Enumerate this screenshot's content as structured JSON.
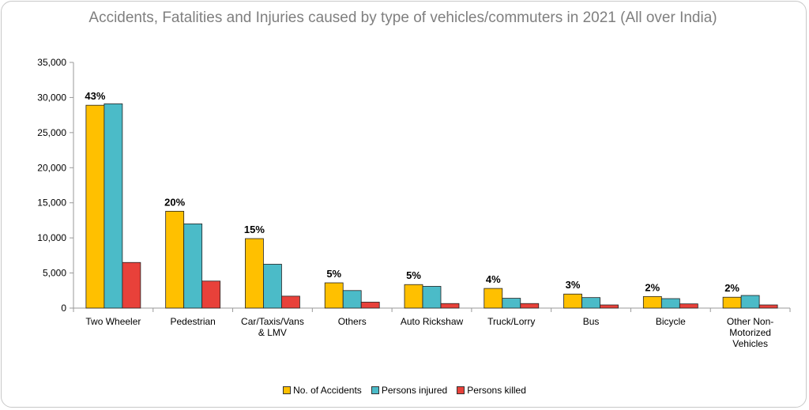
{
  "chart_data": {
    "type": "bar",
    "title": "Accidents, Fatalities and Injuries caused by type of vehicles/commuters in 2021 (All over India)",
    "categories": [
      [
        "Two Wheeler"
      ],
      [
        "Pedestrian"
      ],
      [
        "Car/Taxis/Vans",
        "& LMV"
      ],
      [
        "Others"
      ],
      [
        "Auto Rickshaw"
      ],
      [
        "Truck/Lorry"
      ],
      [
        "Bus"
      ],
      [
        "Bicycle"
      ],
      [
        "Other Non-",
        "Motorized",
        "Vehicles"
      ]
    ],
    "series": [
      {
        "name": "No. of Accidents",
        "color": "#FFC000",
        "values": [
          28900,
          13800,
          9900,
          3600,
          3350,
          2800,
          2000,
          1650,
          1550
        ]
      },
      {
        "name": "Persons injured",
        "color": "#4BBBC8",
        "values": [
          29100,
          12000,
          6250,
          2500,
          3100,
          1400,
          1500,
          1350,
          1800
        ]
      },
      {
        "name": "Persons killed",
        "color": "#E8413A",
        "values": [
          6500,
          3850,
          1700,
          850,
          650,
          650,
          450,
          600,
          450
        ]
      }
    ],
    "percent_labels": [
      "43%",
      "20%",
      "15%",
      "5%",
      "5%",
      "4%",
      "3%",
      "2%",
      "2%"
    ],
    "ylim": [
      0,
      35000
    ],
    "yticks": [
      0,
      5000,
      10000,
      15000,
      20000,
      25000,
      30000,
      35000
    ],
    "ytick_labels": [
      "0",
      "5,000",
      "10,000",
      "15,000",
      "20,000",
      "25,000",
      "30,000",
      "35,000"
    ],
    "xlabel": "",
    "ylabel": "",
    "grid": false,
    "legend_position": "bottom"
  }
}
